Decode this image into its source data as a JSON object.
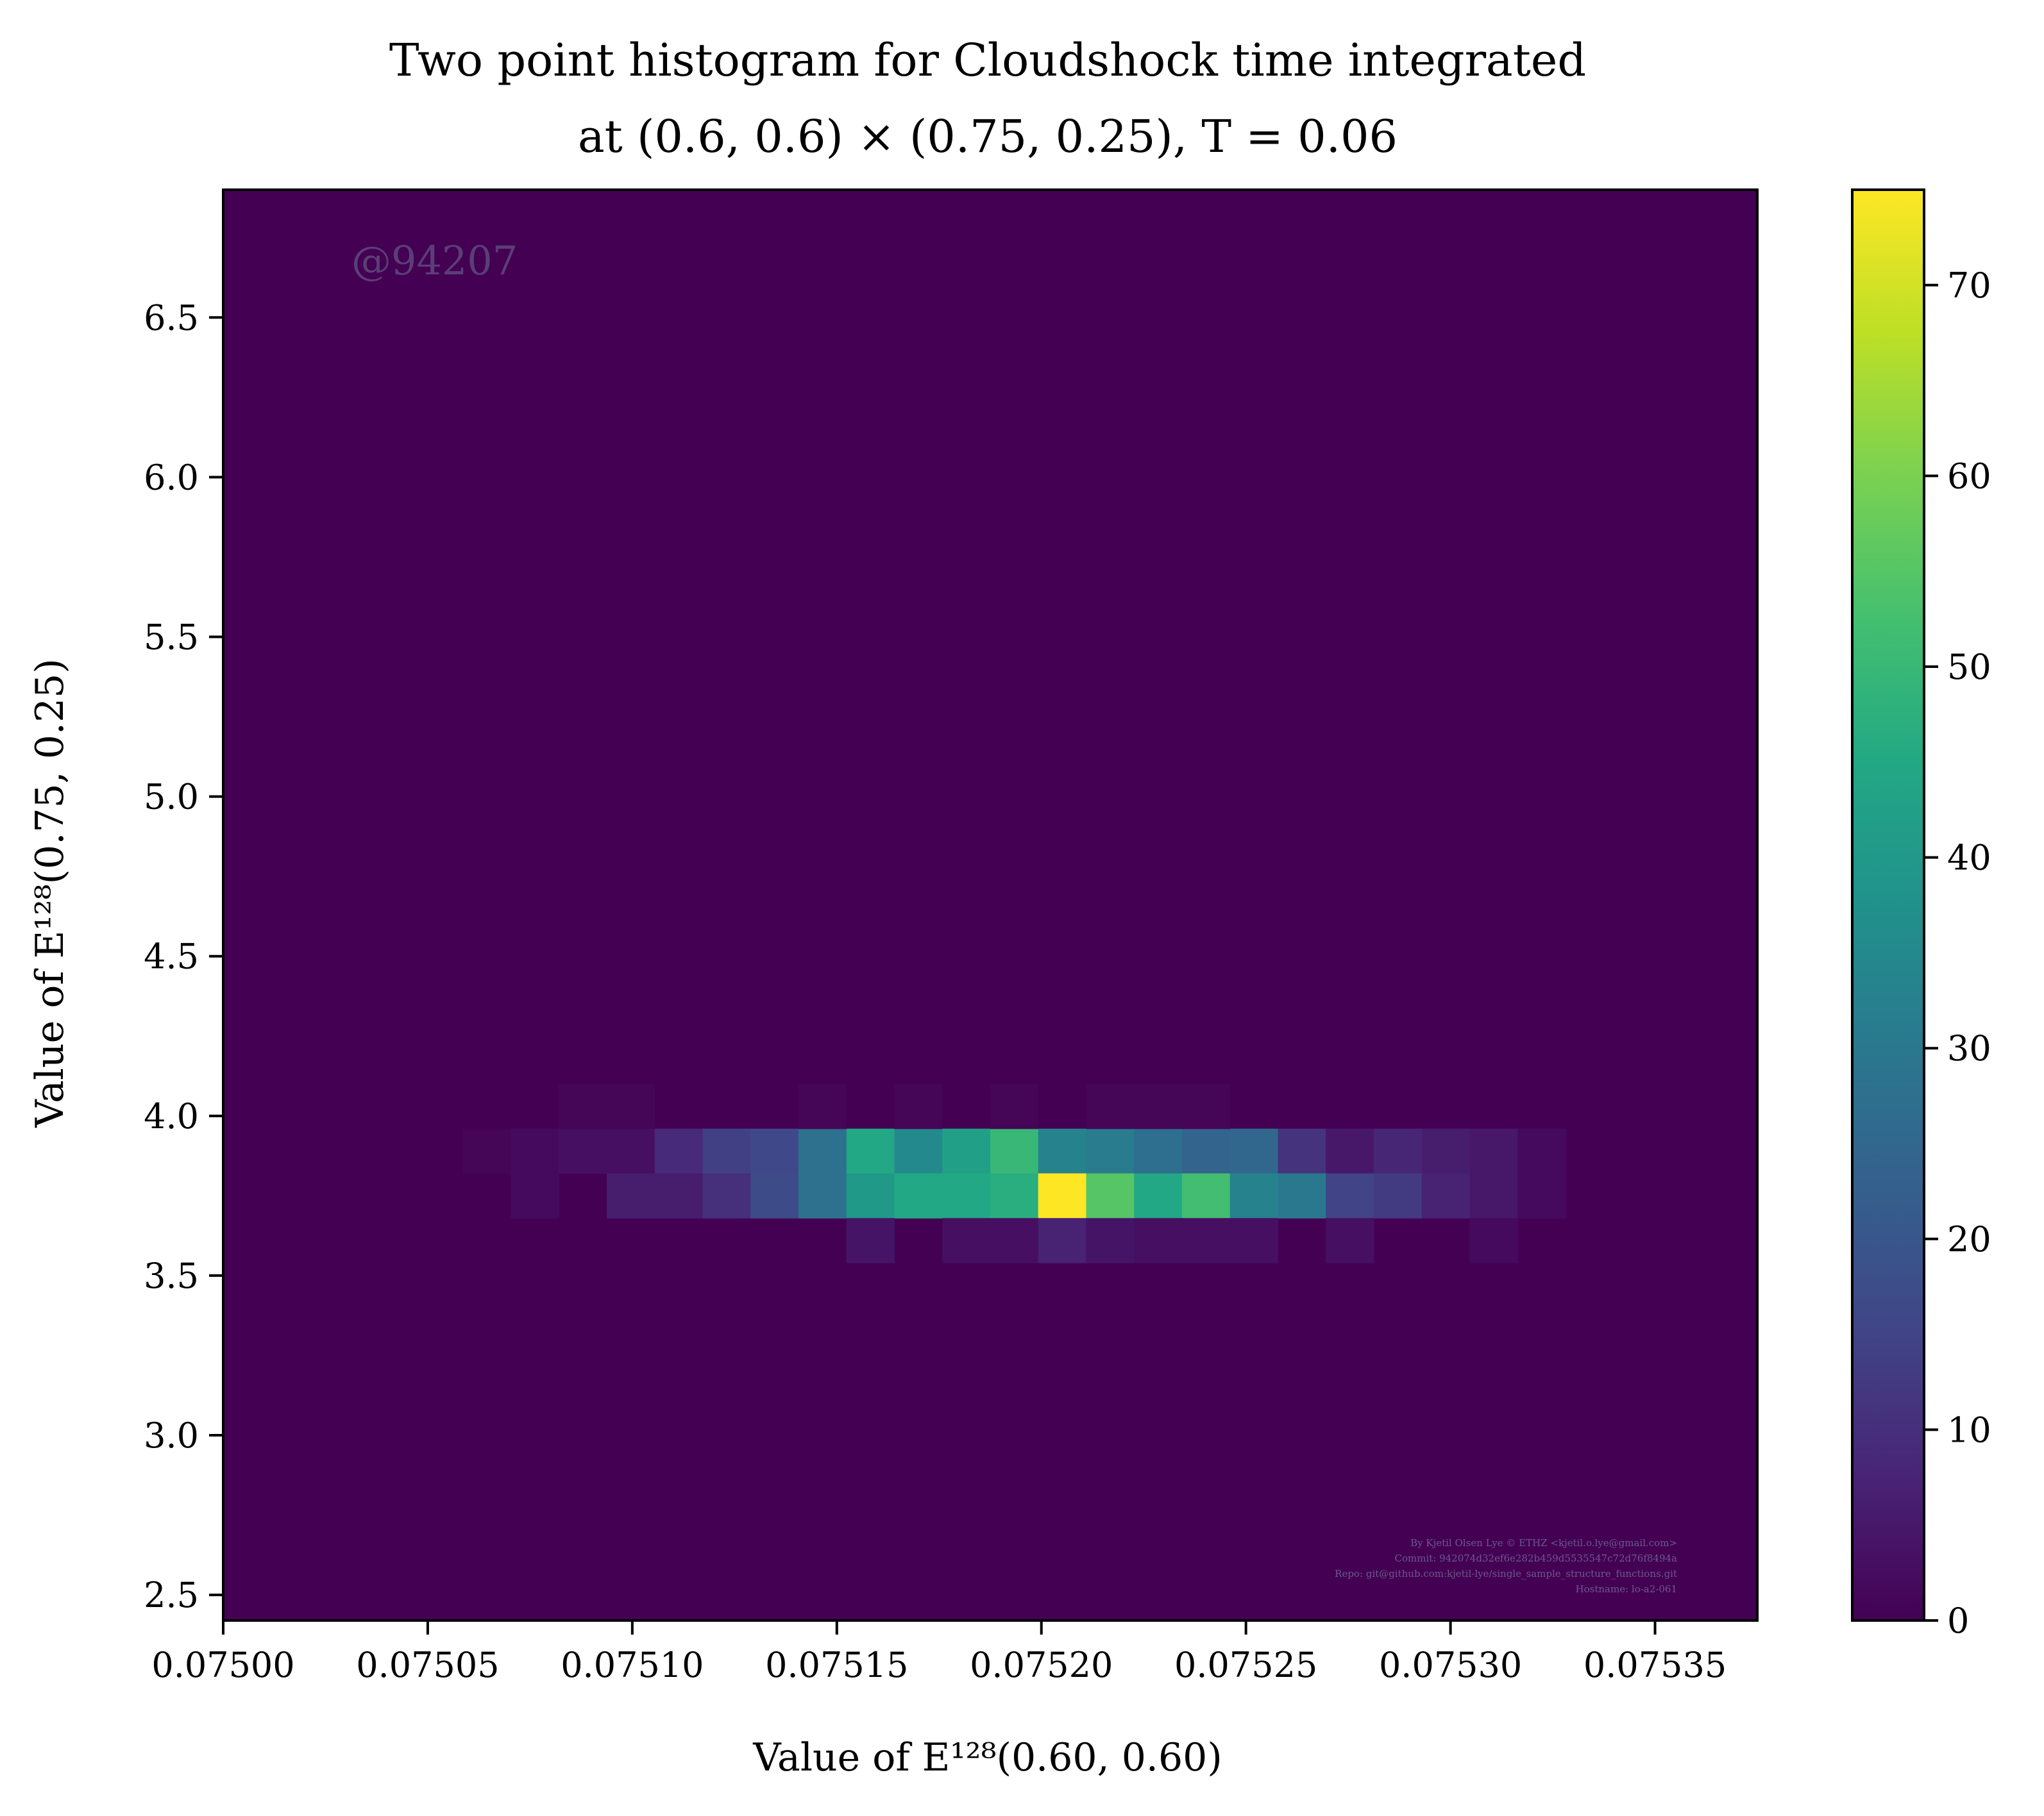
{
  "chart_data": {
    "type": "heatmap",
    "title_line1": "Two point histogram for Cloudshock time integrated",
    "title_line2": "at (0.6, 0.6) × (0.75, 0.25), T = 0.06",
    "xlabel": "Value of E¹²⁸(0.60, 0.60)",
    "ylabel": "Value of E¹²⁸(0.75, 0.25)",
    "xlim": [
      0.075,
      0.075375
    ],
    "ylim": [
      2.42,
      6.9
    ],
    "xticks": [
      0.075,
      0.07505,
      0.0751,
      0.07515,
      0.0752,
      0.07525,
      0.0753,
      0.07535
    ],
    "xtick_labels": [
      "0.07500",
      "0.07505",
      "0.07510",
      "0.07515",
      "0.07520",
      "0.07525",
      "0.07530",
      "0.07535"
    ],
    "yticks": [
      2.5,
      3.0,
      3.5,
      4.0,
      4.5,
      5.0,
      5.5,
      6.0,
      6.5
    ],
    "ytick_labels": [
      "2.5",
      "3.0",
      "3.5",
      "4.0",
      "4.5",
      "5.0",
      "5.5",
      "6.0",
      "6.5"
    ],
    "colorbar": {
      "colormap": "viridis",
      "range": [
        0,
        75
      ],
      "ticks": [
        0,
        10,
        20,
        30,
        40,
        50,
        60,
        70
      ],
      "tick_labels": [
        "0",
        "10",
        "20",
        "30",
        "40",
        "50",
        "60",
        "70"
      ]
    },
    "bins": {
      "x_start": 0.075,
      "x_step": 1.171875e-05,
      "x_count": 32,
      "y_start": 2.42,
      "y_step": 0.14,
      "y_count": 32
    },
    "background_count": 0,
    "cells": [
      {
        "i": 5,
        "j": 10,
        "v": 1
      },
      {
        "i": 6,
        "j": 10,
        "v": 2
      },
      {
        "i": 7,
        "j": 10,
        "v": 3
      },
      {
        "i": 8,
        "j": 10,
        "v": 3
      },
      {
        "i": 9,
        "j": 10,
        "v": 9
      },
      {
        "i": 10,
        "j": 10,
        "v": 14
      },
      {
        "i": 11,
        "j": 10,
        "v": 16
      },
      {
        "i": 12,
        "j": 10,
        "v": 28
      },
      {
        "i": 13,
        "j": 10,
        "v": 45
      },
      {
        "i": 14,
        "j": 10,
        "v": 35
      },
      {
        "i": 15,
        "j": 10,
        "v": 42
      },
      {
        "i": 16,
        "j": 10,
        "v": 50
      },
      {
        "i": 17,
        "j": 10,
        "v": 33
      },
      {
        "i": 18,
        "j": 10,
        "v": 31
      },
      {
        "i": 19,
        "j": 10,
        "v": 27
      },
      {
        "i": 20,
        "j": 10,
        "v": 24
      },
      {
        "i": 21,
        "j": 10,
        "v": 25
      },
      {
        "i": 22,
        "j": 10,
        "v": 11
      },
      {
        "i": 23,
        "j": 10,
        "v": 5
      },
      {
        "i": 24,
        "j": 10,
        "v": 8
      },
      {
        "i": 25,
        "j": 10,
        "v": 6
      },
      {
        "i": 26,
        "j": 10,
        "v": 5
      },
      {
        "i": 27,
        "j": 10,
        "v": 2
      },
      {
        "i": 6,
        "j": 9,
        "v": 2
      },
      {
        "i": 8,
        "j": 9,
        "v": 6
      },
      {
        "i": 9,
        "j": 9,
        "v": 6
      },
      {
        "i": 10,
        "j": 9,
        "v": 10
      },
      {
        "i": 11,
        "j": 9,
        "v": 17
      },
      {
        "i": 12,
        "j": 9,
        "v": 28
      },
      {
        "i": 13,
        "j": 9,
        "v": 40
      },
      {
        "i": 14,
        "j": 9,
        "v": 45
      },
      {
        "i": 15,
        "j": 9,
        "v": 45
      },
      {
        "i": 16,
        "j": 9,
        "v": 47
      },
      {
        "i": 17,
        "j": 9,
        "v": 75
      },
      {
        "i": 18,
        "j": 9,
        "v": 55
      },
      {
        "i": 19,
        "j": 9,
        "v": 45
      },
      {
        "i": 20,
        "j": 9,
        "v": 52
      },
      {
        "i": 21,
        "j": 9,
        "v": 33
      },
      {
        "i": 22,
        "j": 9,
        "v": 30
      },
      {
        "i": 23,
        "j": 9,
        "v": 15
      },
      {
        "i": 24,
        "j": 9,
        "v": 13
      },
      {
        "i": 25,
        "j": 9,
        "v": 7
      },
      {
        "i": 26,
        "j": 9,
        "v": 5
      },
      {
        "i": 27,
        "j": 9,
        "v": 2
      },
      {
        "i": 7,
        "j": 11,
        "v": 1
      },
      {
        "i": 8,
        "j": 11,
        "v": 1
      },
      {
        "i": 12,
        "j": 11,
        "v": 1
      },
      {
        "i": 14,
        "j": 11,
        "v": 1
      },
      {
        "i": 16,
        "j": 11,
        "v": 1
      },
      {
        "i": 18,
        "j": 11,
        "v": 1
      },
      {
        "i": 19,
        "j": 11,
        "v": 1
      },
      {
        "i": 20,
        "j": 11,
        "v": 1
      },
      {
        "i": 13,
        "j": 8,
        "v": 4
      },
      {
        "i": 15,
        "j": 8,
        "v": 3
      },
      {
        "i": 16,
        "j": 8,
        "v": 3
      },
      {
        "i": 17,
        "j": 8,
        "v": 7
      },
      {
        "i": 18,
        "j": 8,
        "v": 4
      },
      {
        "i": 19,
        "j": 8,
        "v": 3
      },
      {
        "i": 20,
        "j": 8,
        "v": 3
      },
      {
        "i": 21,
        "j": 8,
        "v": 3
      },
      {
        "i": 23,
        "j": 8,
        "v": 3
      },
      {
        "i": 26,
        "j": 8,
        "v": 2
      }
    ],
    "watermark": "@94207",
    "credits": [
      "By Kjetil Olsen Lye © ETHZ <kjetil.o.lye@gmail.com>",
      "Commit: 942074d32ef6e282b459d5535547c72d76f8494a",
      "Repo: git@github.com:kjetil-lye/single_sample_structure_functions.git",
      "Hostname: lo-a2-061"
    ]
  }
}
